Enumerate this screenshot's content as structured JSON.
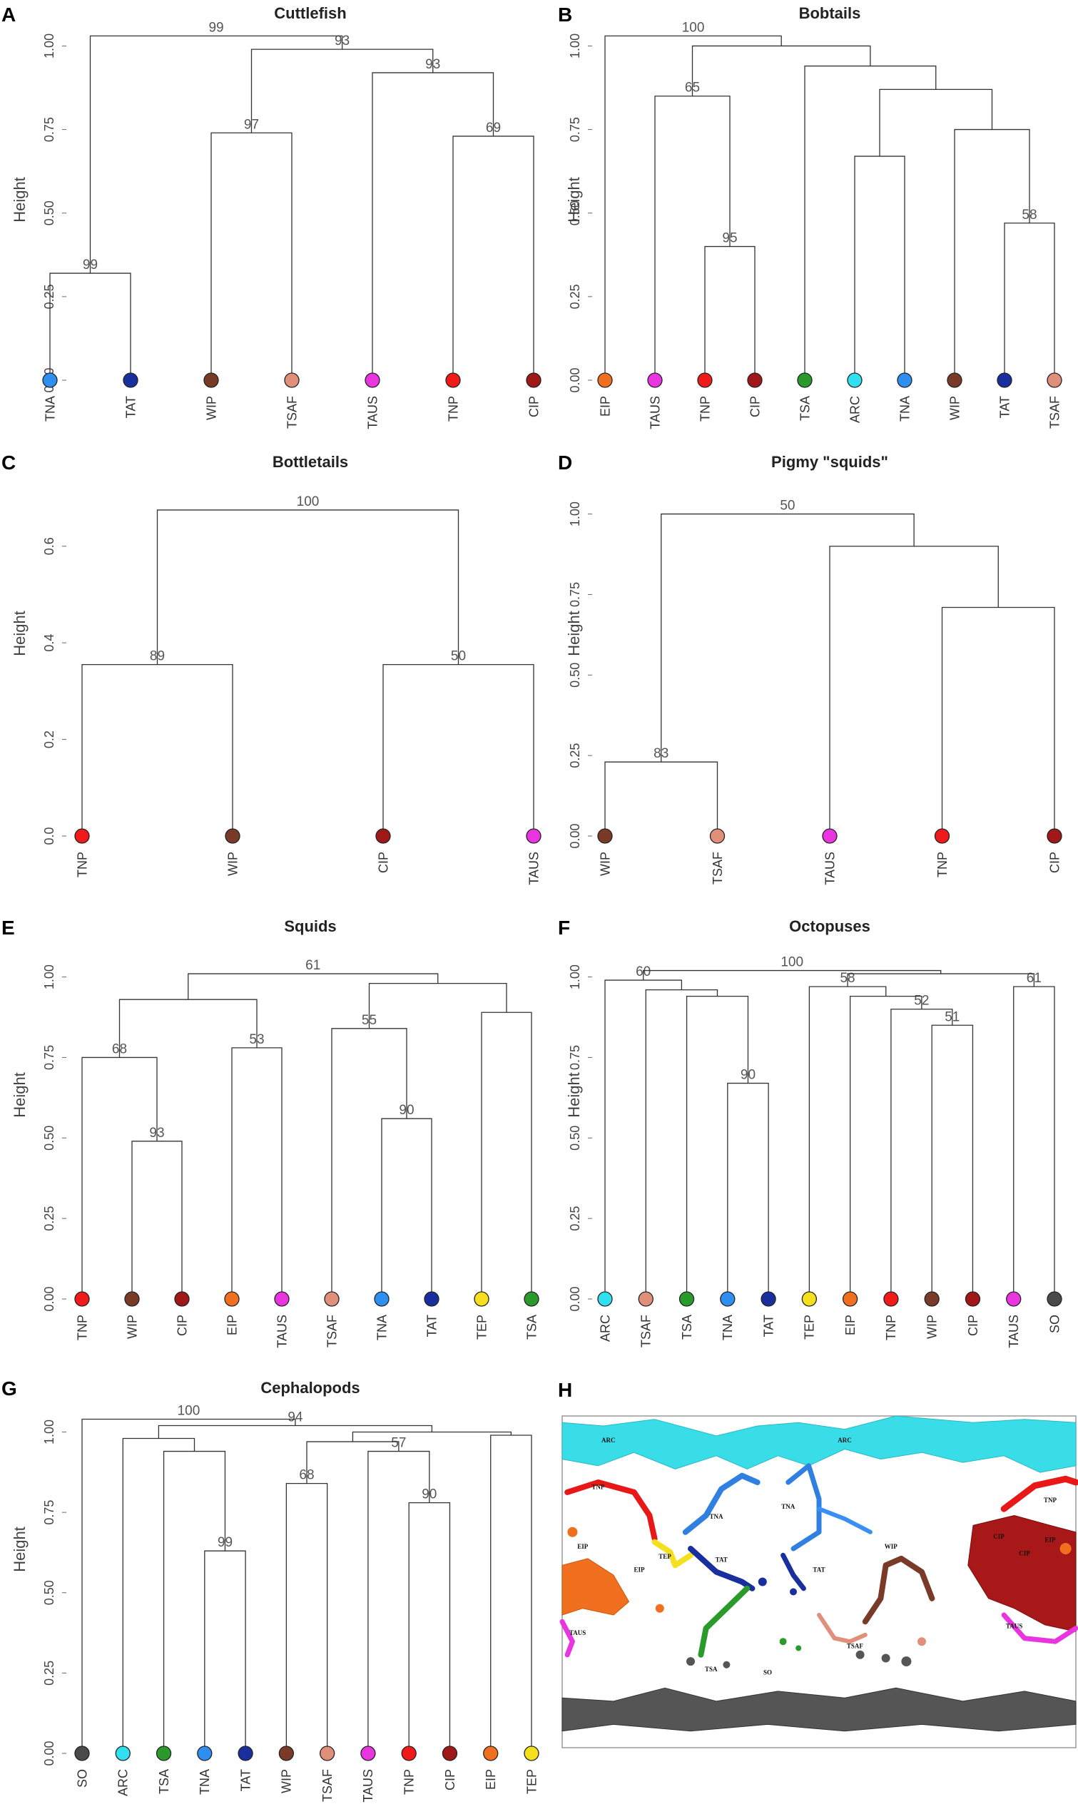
{
  "chart_data": [
    {
      "panel": "A",
      "type": "dendrogram",
      "title": "Cuttlefish",
      "ylabel": "Height",
      "ylim": [
        0,
        1.05
      ],
      "yticks": [
        "0.00",
        "0.25",
        "0.50",
        "0.75",
        "1.00"
      ],
      "leaves": [
        {
          "name": "TNA",
          "color": "#2f8ff0"
        },
        {
          "name": "TAT",
          "color": "#1a2f9e"
        },
        {
          "name": "WIP",
          "color": "#7a3a28"
        },
        {
          "name": "TSAF",
          "color": "#e0907a"
        },
        {
          "name": "TAUS",
          "color": "#e835e0"
        },
        {
          "name": "TNP",
          "color": "#f01a1a"
        },
        {
          "name": "CIP",
          "color": "#a01818"
        }
      ],
      "merges": [
        {
          "a": 0,
          "b": 1,
          "h": 0.32,
          "label": "99"
        },
        {
          "a": 2,
          "b": 3,
          "h": 0.74,
          "label": "97"
        },
        {
          "a": 5,
          "b": 6,
          "h": 0.73,
          "label": "69"
        },
        {
          "a": 4,
          "b": 9,
          "h": 0.92,
          "label": "93"
        },
        {
          "a": 8,
          "b": 10,
          "h": 0.99,
          "label": "93"
        },
        {
          "a": 7,
          "b": 11,
          "h": 1.03,
          "label": "99"
        }
      ]
    },
    {
      "panel": "B",
      "type": "dendrogram",
      "title": "Bobtails",
      "ylabel": "Height",
      "ylim": [
        0,
        1.05
      ],
      "yticks": [
        "0.00",
        "0.25",
        "0.50",
        "0.75",
        "1.00"
      ],
      "leaves": [
        {
          "name": "EIP",
          "color": "#f07020"
        },
        {
          "name": "TAUS",
          "color": "#e835e0"
        },
        {
          "name": "TNP",
          "color": "#f01a1a"
        },
        {
          "name": "CIP",
          "color": "#a01818"
        },
        {
          "name": "TSA",
          "color": "#2a9a2a"
        },
        {
          "name": "ARC",
          "color": "#30e0f0"
        },
        {
          "name": "TNA",
          "color": "#2f8ff0"
        },
        {
          "name": "WIP",
          "color": "#7a3a28"
        },
        {
          "name": "TAT",
          "color": "#1a2f9e"
        },
        {
          "name": "TSAF",
          "color": "#e0907a"
        }
      ],
      "merges": [
        {
          "a": 2,
          "b": 3,
          "h": 0.4,
          "label": "95"
        },
        {
          "a": 1,
          "b": 10,
          "h": 0.85,
          "label": "65"
        },
        {
          "a": 5,
          "b": 6,
          "h": 0.67,
          "label": ""
        },
        {
          "a": 8,
          "b": 9,
          "h": 0.47,
          "label": "58"
        },
        {
          "a": 7,
          "b": 13,
          "h": 0.75,
          "label": ""
        },
        {
          "a": 12,
          "b": 14,
          "h": 0.87,
          "label": ""
        },
        {
          "a": 4,
          "b": 15,
          "h": 0.94,
          "label": ""
        },
        {
          "a": 11,
          "b": 16,
          "h": 1.0,
          "label": ""
        },
        {
          "a": 0,
          "b": 17,
          "h": 1.03,
          "label": "100"
        }
      ]
    },
    {
      "panel": "C",
      "type": "dendrogram",
      "title": "Bottletails",
      "ylabel": "Height",
      "ylim": [
        0,
        0.7
      ],
      "yticks": [
        "0.0",
        "0.2",
        "0.4",
        "0.6"
      ],
      "leaves": [
        {
          "name": "TNP",
          "color": "#f01a1a"
        },
        {
          "name": "WIP",
          "color": "#7a3a28"
        },
        {
          "name": "CIP",
          "color": "#a01818"
        },
        {
          "name": "TAUS",
          "color": "#e835e0"
        }
      ],
      "merges": [
        {
          "a": 0,
          "b": 1,
          "h": 0.355,
          "label": "89"
        },
        {
          "a": 2,
          "b": 3,
          "h": 0.355,
          "label": "50"
        },
        {
          "a": 4,
          "b": 5,
          "h": 0.675,
          "label": "100"
        }
      ]
    },
    {
      "panel": "D",
      "type": "dendrogram",
      "title": "Pigmy \"squids\"",
      "ylabel": "Height",
      "ylim": [
        0,
        1.05
      ],
      "yticks": [
        "0.00",
        "0.25",
        "0.50",
        "0.75",
        "1.00"
      ],
      "leaves": [
        {
          "name": "WIP",
          "color": "#7a3a28"
        },
        {
          "name": "TSAF",
          "color": "#e0907a"
        },
        {
          "name": "TAUS",
          "color": "#e835e0"
        },
        {
          "name": "TNP",
          "color": "#f01a1a"
        },
        {
          "name": "CIP",
          "color": "#a01818"
        }
      ],
      "merges": [
        {
          "a": 0,
          "b": 1,
          "h": 0.23,
          "label": "83"
        },
        {
          "a": 3,
          "b": 4,
          "h": 0.71,
          "label": ""
        },
        {
          "a": 2,
          "b": 6,
          "h": 0.9,
          "label": ""
        },
        {
          "a": 5,
          "b": 7,
          "h": 1.0,
          "label": "50"
        }
      ]
    },
    {
      "panel": "E",
      "type": "dendrogram",
      "title": "Squids",
      "ylabel": "Height",
      "ylim": [
        0,
        1.05
      ],
      "yticks": [
        "0.00",
        "0.25",
        "0.50",
        "0.75",
        "1.00"
      ],
      "leaves": [
        {
          "name": "TNP",
          "color": "#f01a1a"
        },
        {
          "name": "WIP",
          "color": "#7a3a28"
        },
        {
          "name": "CIP",
          "color": "#a01818"
        },
        {
          "name": "EIP",
          "color": "#f07020"
        },
        {
          "name": "TAUS",
          "color": "#e835e0"
        },
        {
          "name": "TSAF",
          "color": "#e0907a"
        },
        {
          "name": "TNA",
          "color": "#2f8ff0"
        },
        {
          "name": "TAT",
          "color": "#1a2f9e"
        },
        {
          "name": "TEP",
          "color": "#f5e020"
        },
        {
          "name": "TSA",
          "color": "#2a9a2a"
        }
      ],
      "merges": [
        {
          "a": 1,
          "b": 2,
          "h": 0.49,
          "label": "93"
        },
        {
          "a": 0,
          "b": 10,
          "h": 0.75,
          "label": "68"
        },
        {
          "a": 3,
          "b": 4,
          "h": 0.78,
          "label": "53"
        },
        {
          "a": 11,
          "b": 12,
          "h": 0.93,
          "label": ""
        },
        {
          "a": 6,
          "b": 7,
          "h": 0.56,
          "label": "90"
        },
        {
          "a": 5,
          "b": 14,
          "h": 0.84,
          "label": "55"
        },
        {
          "a": 8,
          "b": 9,
          "h": 0.89,
          "label": ""
        },
        {
          "a": 15,
          "b": 16,
          "h": 0.98,
          "label": ""
        },
        {
          "a": 13,
          "b": 17,
          "h": 1.01,
          "label": "61"
        }
      ]
    },
    {
      "panel": "F",
      "type": "dendrogram",
      "title": "Octopuses",
      "ylabel": "Height",
      "ylim": [
        0,
        1.05
      ],
      "yticks": [
        "0.00",
        "0.25",
        "0.50",
        "0.75",
        "1.00"
      ],
      "leaves": [
        {
          "name": "ARC",
          "color": "#30e0f0"
        },
        {
          "name": "TSAF",
          "color": "#e0907a"
        },
        {
          "name": "TSA",
          "color": "#2a9a2a"
        },
        {
          "name": "TNA",
          "color": "#2f8ff0"
        },
        {
          "name": "TAT",
          "color": "#1a2f9e"
        },
        {
          "name": "TEP",
          "color": "#f5e020"
        },
        {
          "name": "EIP",
          "color": "#f07020"
        },
        {
          "name": "TNP",
          "color": "#f01a1a"
        },
        {
          "name": "WIP",
          "color": "#7a3a28"
        },
        {
          "name": "CIP",
          "color": "#a01818"
        },
        {
          "name": "TAUS",
          "color": "#e835e0"
        },
        {
          "name": "SO",
          "color": "#4a4a4a"
        }
      ],
      "merges": [
        {
          "a": 3,
          "b": 4,
          "h": 0.67,
          "label": "90"
        },
        {
          "a": 2,
          "b": 12,
          "h": 0.94,
          "label": ""
        },
        {
          "a": 1,
          "b": 13,
          "h": 0.96,
          "label": ""
        },
        {
          "a": 0,
          "b": 14,
          "h": 0.99,
          "label": "60"
        },
        {
          "a": 8,
          "b": 9,
          "h": 0.85,
          "label": "51"
        },
        {
          "a": 7,
          "b": 16,
          "h": 0.9,
          "label": "52"
        },
        {
          "a": 6,
          "b": 17,
          "h": 0.94,
          "label": ""
        },
        {
          "a": 5,
          "b": 18,
          "h": 0.97,
          "label": "58"
        },
        {
          "a": 10,
          "b": 11,
          "h": 0.97,
          "label": "61"
        },
        {
          "a": 19,
          "b": 20,
          "h": 1.01,
          "label": ""
        },
        {
          "a": 15,
          "b": 21,
          "h": 1.02,
          "label": "100"
        }
      ]
    },
    {
      "panel": "G",
      "type": "dendrogram",
      "title": "Cephalopods",
      "ylabel": "Height",
      "ylim": [
        0,
        1.05
      ],
      "yticks": [
        "0.00",
        "0.25",
        "0.50",
        "0.75",
        "1.00"
      ],
      "leaves": [
        {
          "name": "SO",
          "color": "#4a4a4a"
        },
        {
          "name": "ARC",
          "color": "#30e0f0"
        },
        {
          "name": "TSA",
          "color": "#2a9a2a"
        },
        {
          "name": "TNA",
          "color": "#2f8ff0"
        },
        {
          "name": "TAT",
          "color": "#1a2f9e"
        },
        {
          "name": "WIP",
          "color": "#7a3a28"
        },
        {
          "name": "TSAF",
          "color": "#e0907a"
        },
        {
          "name": "TAUS",
          "color": "#e835e0"
        },
        {
          "name": "TNP",
          "color": "#f01a1a"
        },
        {
          "name": "CIP",
          "color": "#a01818"
        },
        {
          "name": "EIP",
          "color": "#f07020"
        },
        {
          "name": "TEP",
          "color": "#f5e020"
        }
      ],
      "merges": [
        {
          "a": 3,
          "b": 4,
          "h": 0.63,
          "label": "99"
        },
        {
          "a": 2,
          "b": 12,
          "h": 0.94,
          "label": ""
        },
        {
          "a": 1,
          "b": 13,
          "h": 0.98,
          "label": ""
        },
        {
          "a": 5,
          "b": 6,
          "h": 0.84,
          "label": "68"
        },
        {
          "a": 8,
          "b": 9,
          "h": 0.78,
          "label": "90"
        },
        {
          "a": 7,
          "b": 16,
          "h": 0.94,
          "label": "57"
        },
        {
          "a": 15,
          "b": 17,
          "h": 0.97,
          "label": ""
        },
        {
          "a": 10,
          "b": 11,
          "h": 0.99,
          "label": ""
        },
        {
          "a": 18,
          "b": 19,
          "h": 1.0,
          "label": ""
        },
        {
          "a": 14,
          "b": 20,
          "h": 1.02,
          "label": "94"
        },
        {
          "a": 0,
          "b": 21,
          "h": 1.04,
          "label": "100"
        }
      ]
    }
  ],
  "panel_labels": [
    "A",
    "B",
    "C",
    "D",
    "E",
    "F",
    "G",
    "H"
  ],
  "map": {
    "panel": "H",
    "labels": [
      "ARC",
      "ARC",
      "TNP",
      "TNP",
      "TNA",
      "TNA",
      "EIP",
      "EIP",
      "EIP",
      "TEP",
      "TAT",
      "TAT",
      "WIP",
      "CIP",
      "CIP",
      "TAUS",
      "TAUS",
      "TSA",
      "TSAF",
      "SO"
    ]
  }
}
